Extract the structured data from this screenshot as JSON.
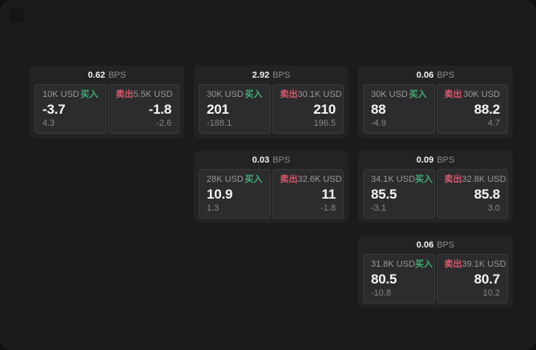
{
  "colors": {
    "buy_green": "#3fae73",
    "sell_red": "#d65a6d",
    "page_bg": "#1b1b1d",
    "card_bg": "#232325",
    "panel_bg": "#2c2c2e"
  },
  "cards": [
    {
      "bps_value": "0.62",
      "bps_unit": "BPS",
      "buy": {
        "amount": "10K USD",
        "action": "买入",
        "price": "-3.7",
        "change": "4.3"
      },
      "sell": {
        "action": "卖出",
        "amount": "5.5K USD",
        "price": "-1.8",
        "change": "-2.6"
      }
    },
    {
      "bps_value": "2.92",
      "bps_unit": "BPS",
      "buy": {
        "amount": "30K USD",
        "action": "买入",
        "price": "201",
        "change": "-188.1"
      },
      "sell": {
        "action": "卖出",
        "amount": "30.1K USD",
        "price": "210",
        "change": "196.5"
      }
    },
    {
      "bps_value": "0.06",
      "bps_unit": "BPS",
      "buy": {
        "amount": "30K USD",
        "action": "买入",
        "price": "88",
        "change": "-4.9"
      },
      "sell": {
        "action": "卖出",
        "amount": "30K USD",
        "price": "88.2",
        "change": "4.7"
      }
    },
    {
      "bps_value": "0.03",
      "bps_unit": "BPS",
      "buy": {
        "amount": "28K USD",
        "action": "买入",
        "price": "10.9",
        "change": "1.3"
      },
      "sell": {
        "action": "卖出",
        "amount": "32.6K USD",
        "price": "11",
        "change": "-1.8"
      }
    },
    {
      "bps_value": "0.09",
      "bps_unit": "BPS",
      "buy": {
        "amount": "34.1K USD",
        "action": "买入",
        "price": "85.5",
        "change": "-3.1"
      },
      "sell": {
        "action": "卖出",
        "amount": "32.8K USD",
        "price": "85.8",
        "change": "3.0"
      }
    },
    {
      "bps_value": "0.06",
      "bps_unit": "BPS",
      "buy": {
        "amount": "31.8K USD",
        "action": "买入",
        "price": "80.5",
        "change": "-10.8"
      },
      "sell": {
        "action": "卖出",
        "amount": "39.1K USD",
        "price": "80.7",
        "change": "10.2"
      }
    }
  ]
}
